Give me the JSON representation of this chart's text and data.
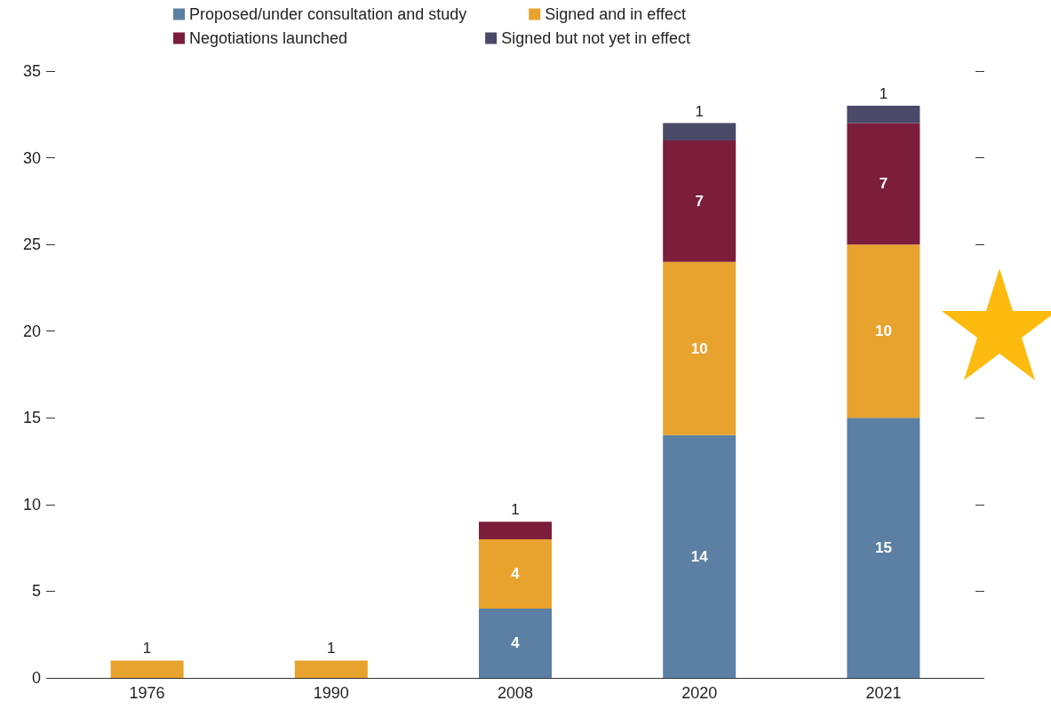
{
  "chart_data": {
    "type": "bar",
    "stacked": true,
    "categories": [
      "1976",
      "1990",
      "2008",
      "2020",
      "2021"
    ],
    "series": [
      {
        "name": "Proposed/under consultation and study",
        "color": "#5b80a3",
        "values": [
          null,
          null,
          4,
          14,
          15
        ]
      },
      {
        "name": "Signed and in effect",
        "color": "#e8a22e",
        "values": [
          1,
          1,
          4,
          10,
          10
        ]
      },
      {
        "name": "Negotiations launched",
        "color": "#7c1d3c",
        "values": [
          null,
          null,
          1,
          7,
          7
        ]
      },
      {
        "name": "Signed but not yet in effect",
        "color": "#4a4968",
        "values": [
          null,
          null,
          null,
          1,
          1
        ]
      }
    ],
    "ylim": [
      0,
      35
    ],
    "yticks": [
      0,
      5,
      10,
      15,
      20,
      25,
      30,
      35
    ],
    "grid": false,
    "legend": "top",
    "data_labels": true
  }
}
